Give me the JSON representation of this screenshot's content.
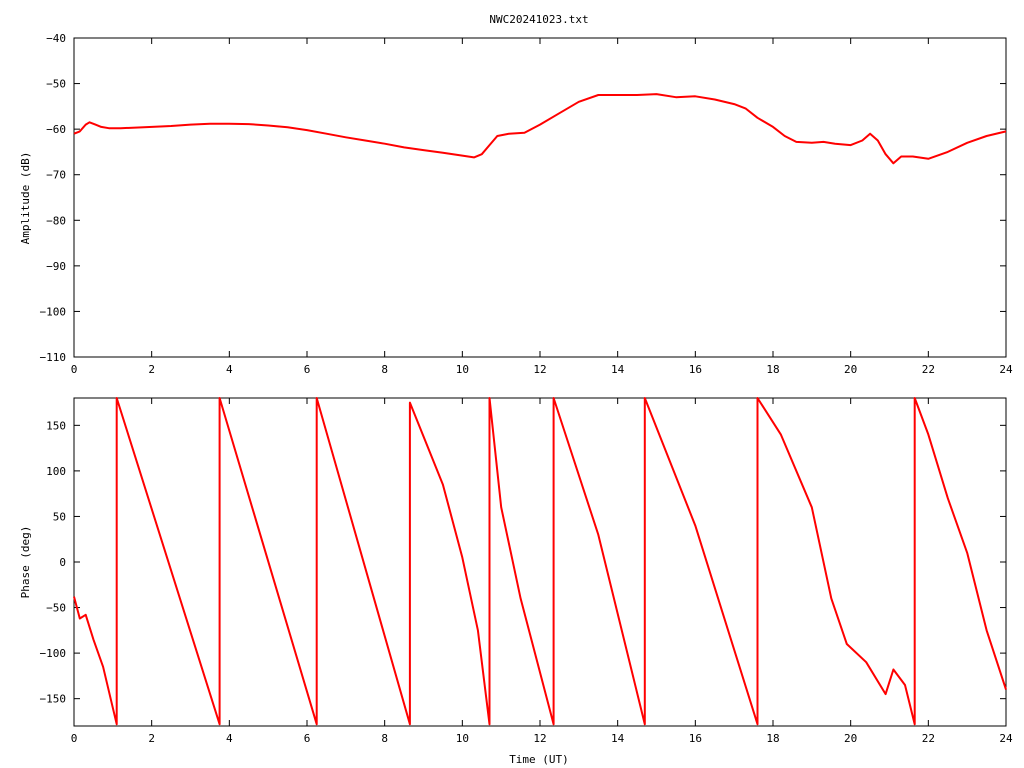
{
  "title": "NWC20241023.txt",
  "colors": {
    "trace": "#ff0000",
    "axes": "#000000",
    "background": "#ffffff"
  },
  "chart_data": [
    {
      "type": "line",
      "title": "NWC20241023.txt",
      "xlabel": "",
      "ylabel": "Amplitude (dB)",
      "xlim": [
        0,
        24
      ],
      "ylim": [
        -110,
        -40
      ],
      "xticks": [
        "0",
        "2",
        "4",
        "6",
        "8",
        "10",
        "12",
        "14",
        "16",
        "18",
        "20",
        "22",
        "24"
      ],
      "yticks": [
        "−40",
        "−50",
        "−60",
        "−70",
        "−80",
        "−90",
        "−100",
        "−110"
      ],
      "ytick_values": [
        -40,
        -50,
        -60,
        -70,
        -80,
        -90,
        -100,
        -110
      ],
      "grid": false,
      "series": [
        {
          "x": [
            0,
            0.15,
            0.3,
            0.4,
            0.55,
            0.7,
            0.9,
            1.2,
            1.8,
            2.5,
            3.0,
            3.5,
            4.0,
            4.5,
            5.0,
            5.5,
            6.0,
            6.5,
            7.0,
            7.5,
            8.0,
            8.5,
            9.0,
            9.5,
            10.0,
            10.3,
            10.5,
            10.7,
            10.9,
            11.2,
            11.6,
            12.0,
            12.5,
            13.0,
            13.5,
            14.0,
            14.5,
            15.0,
            15.5,
            16.0,
            16.5,
            17.0,
            17.3,
            17.6,
            18.0,
            18.3,
            18.6,
            19.0,
            19.3,
            19.6,
            20.0,
            20.3,
            20.5,
            20.7,
            20.9,
            21.1,
            21.3,
            21.6,
            22.0,
            22.5,
            23.0,
            23.5,
            24.0
          ],
          "y": [
            -61,
            -60.5,
            -59,
            -58.5,
            -59,
            -59.5,
            -59.8,
            -59.8,
            -59.6,
            -59.3,
            -59,
            -58.8,
            -58.8,
            -58.9,
            -59.2,
            -59.6,
            -60.2,
            -61,
            -61.8,
            -62.5,
            -63.2,
            -64,
            -64.6,
            -65.2,
            -65.8,
            -66.2,
            -65.5,
            -63.5,
            -61.5,
            -61,
            -60.8,
            -59,
            -56.5,
            -54,
            -52.5,
            -52.5,
            -52.5,
            -52.3,
            -53,
            -52.8,
            -53.5,
            -54.5,
            -55.5,
            -57.5,
            -59.5,
            -61.5,
            -62.8,
            -63,
            -62.8,
            -63.2,
            -63.5,
            -62.5,
            -61,
            -62.5,
            -65.5,
            -67.5,
            -66,
            -66,
            -66.5,
            -65,
            -63,
            -61.5,
            -60.5
          ]
        }
      ]
    },
    {
      "type": "line",
      "title": "",
      "xlabel": "Time (UT)",
      "ylabel": "Phase (deg)",
      "xlim": [
        0,
        24
      ],
      "ylim": [
        -180,
        180
      ],
      "xticks": [
        "0",
        "2",
        "4",
        "6",
        "8",
        "10",
        "12",
        "14",
        "16",
        "18",
        "20",
        "22",
        "24"
      ],
      "yticks": [
        "150",
        "100",
        "50",
        "0",
        "−50",
        "−100",
        "−150"
      ],
      "ytick_values": [
        150,
        100,
        50,
        0,
        -50,
        -100,
        -150
      ],
      "grid": false,
      "series": [
        {
          "x": [
            0,
            0.15,
            0.3,
            0.5,
            0.75,
            1.1,
            1.1,
            3.75,
            3.75,
            6.25,
            6.25,
            8.65,
            8.65,
            9.5,
            10.0,
            10.4,
            10.7,
            10.7,
            11.0,
            11.5,
            12.35,
            12.35,
            13.5,
            14.7,
            14.7,
            16.0,
            17.6,
            17.6,
            18.2,
            19.0,
            19.5,
            19.9,
            20.4,
            20.9,
            21.1,
            21.4,
            21.65,
            21.65,
            22.0,
            22.5,
            23.0,
            23.5,
            24.0
          ],
          "y": [
            -38,
            -62,
            -58,
            -85,
            -115,
            -178,
            180,
            -178,
            180,
            -178,
            180,
            -178,
            175,
            85,
            5,
            -75,
            -178,
            180,
            60,
            -40,
            -178,
            180,
            30,
            -178,
            180,
            40,
            -178,
            180,
            140,
            60,
            -40,
            -90,
            -110,
            -145,
            -118,
            -135,
            -178,
            180,
            140,
            70,
            10,
            -75,
            -140
          ]
        }
      ]
    }
  ]
}
